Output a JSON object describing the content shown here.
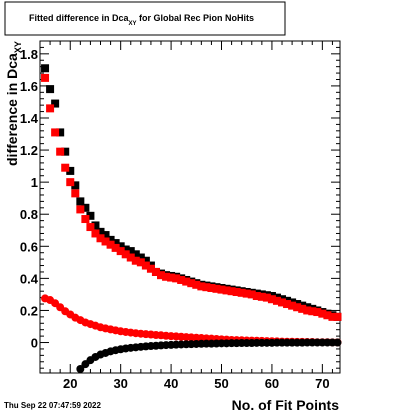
{
  "title": {
    "prefix": "Fitted difference in Dca",
    "subscript": "XY",
    "suffix": " for Global Rec Pion NoHits"
  },
  "timestamp": "Thu Sep 22 07:47:59 2022",
  "colors": {
    "series_black": "#000000",
    "series_red": "#ff0000"
  },
  "chart_data": {
    "type": "scatter",
    "title": "Fitted difference in Dca_XY for Global Rec Pion NoHits",
    "xlabel": "No. of Fit Points",
    "ylabel": "difference in Dca_XY",
    "ylabel_main": "difference in Dca",
    "ylabel_sub": "XY",
    "xlim": [
      14,
      73.5
    ],
    "ylim": [
      -0.19,
      1.88
    ],
    "grid": false,
    "legend": false,
    "x_ticks": [
      20,
      30,
      40,
      50,
      60,
      70
    ],
    "y_ticks": [
      0,
      0.2,
      0.4,
      0.6,
      0.8,
      1,
      1.2,
      1.4,
      1.6,
      1.8
    ],
    "x_tick_labels": [
      "20",
      "30",
      "40",
      "50",
      "60",
      "70"
    ],
    "y_tick_labels": [
      "0",
      "0.2",
      "0.4",
      "0.6",
      "0.8",
      "1",
      "1.2",
      "1.4",
      "1.6",
      "1.8"
    ],
    "series": [
      {
        "marker": "square",
        "color": "#000000",
        "x": [
          15,
          16,
          17,
          18,
          19,
          20,
          21,
          22,
          23,
          24,
          25,
          26,
          27,
          28,
          29,
          30,
          31,
          32,
          33,
          34,
          35,
          36,
          37,
          38,
          39,
          40,
          41,
          42,
          43,
          44,
          45,
          46,
          47,
          48,
          49,
          50,
          51,
          52,
          53,
          54,
          55,
          56,
          57,
          58,
          59,
          60,
          61,
          62,
          63,
          64,
          65,
          66,
          67,
          68,
          69,
          70,
          71,
          72,
          73
        ],
        "y": [
          1.71,
          1.58,
          1.49,
          1.31,
          1.19,
          1.07,
          0.98,
          0.88,
          0.84,
          0.79,
          0.73,
          0.69,
          0.67,
          0.64,
          0.62,
          0.6,
          0.58,
          0.57,
          0.55,
          0.53,
          0.51,
          0.48,
          0.44,
          0.43,
          0.42,
          0.415,
          0.41,
          0.4,
          0.39,
          0.38,
          0.37,
          0.36,
          0.355,
          0.35,
          0.345,
          0.34,
          0.335,
          0.33,
          0.325,
          0.32,
          0.315,
          0.31,
          0.305,
          0.3,
          0.295,
          0.29,
          0.28,
          0.27,
          0.26,
          0.25,
          0.24,
          0.23,
          0.22,
          0.21,
          0.2,
          0.19,
          0.18,
          0.17,
          0.16
        ]
      },
      {
        "marker": "square",
        "color": "#ff0000",
        "x": [
          15,
          16,
          17,
          18,
          19,
          20,
          21,
          22,
          23,
          24,
          25,
          26,
          27,
          28,
          29,
          30,
          31,
          32,
          33,
          34,
          35,
          36,
          37,
          38,
          39,
          40,
          41,
          42,
          43,
          44,
          45,
          46,
          47,
          48,
          49,
          50,
          51,
          52,
          53,
          54,
          55,
          56,
          57,
          58,
          59,
          60,
          61,
          62,
          63,
          64,
          65,
          66,
          67,
          68,
          69,
          70,
          71,
          72,
          73
        ],
        "y": [
          1.65,
          1.46,
          1.31,
          1.19,
          1.09,
          1.0,
          0.93,
          0.83,
          0.77,
          0.72,
          0.68,
          0.65,
          0.63,
          0.61,
          0.59,
          0.57,
          0.55,
          0.53,
          0.51,
          0.5,
          0.48,
          0.46,
          0.44,
          0.42,
          0.41,
          0.405,
          0.4,
          0.39,
          0.38,
          0.37,
          0.36,
          0.35,
          0.345,
          0.34,
          0.335,
          0.33,
          0.325,
          0.32,
          0.315,
          0.31,
          0.305,
          0.3,
          0.29,
          0.285,
          0.28,
          0.27,
          0.26,
          0.25,
          0.24,
          0.23,
          0.22,
          0.21,
          0.2,
          0.195,
          0.19,
          0.18,
          0.17,
          0.16,
          0.16
        ]
      },
      {
        "marker": "circle",
        "color": "#ff0000",
        "x": [
          15,
          16,
          17,
          18,
          19,
          20,
          21,
          22,
          23,
          24,
          25,
          26,
          27,
          28,
          29,
          30,
          31,
          32,
          33,
          34,
          35,
          36,
          37,
          38,
          39,
          40,
          41,
          42,
          43,
          44,
          45,
          46,
          47,
          48,
          49,
          50,
          51,
          52,
          53,
          54,
          55,
          56,
          57,
          58,
          59,
          60,
          61,
          62,
          63,
          64,
          65,
          66,
          67,
          68,
          69,
          70,
          71,
          72,
          73
        ],
        "y": [
          0.275,
          0.265,
          0.245,
          0.22,
          0.195,
          0.175,
          0.155,
          0.14,
          0.125,
          0.115,
          0.105,
          0.095,
          0.088,
          0.082,
          0.076,
          0.07,
          0.066,
          0.062,
          0.058,
          0.055,
          0.052,
          0.05,
          0.047,
          0.045,
          0.042,
          0.04,
          0.038,
          0.036,
          0.034,
          0.032,
          0.03,
          0.028,
          0.026,
          0.024,
          0.022,
          0.02,
          0.018,
          0.016,
          0.015,
          0.014,
          0.013,
          0.012,
          0.011,
          0.01,
          0.009,
          0.008,
          0.007,
          0.006,
          0.005,
          0.005,
          0.004,
          0.004,
          0.003,
          0.003,
          0.002,
          0.002,
          0.002,
          0.001,
          0.001
        ]
      },
      {
        "marker": "circle",
        "color": "#000000",
        "x": [
          22,
          23,
          24,
          25,
          26,
          27,
          28,
          29,
          30,
          31,
          32,
          33,
          34,
          35,
          36,
          37,
          38,
          39,
          40,
          41,
          42,
          43,
          44,
          45,
          46,
          47,
          48,
          49,
          50,
          51,
          52,
          53,
          54,
          55,
          56,
          57,
          58,
          59,
          60,
          61,
          62,
          63,
          64,
          65,
          66,
          67,
          68,
          69,
          70,
          71,
          72,
          73
        ],
        "y": [
          -0.165,
          -0.135,
          -0.11,
          -0.09,
          -0.075,
          -0.065,
          -0.055,
          -0.048,
          -0.042,
          -0.037,
          -0.033,
          -0.03,
          -0.027,
          -0.024,
          -0.022,
          -0.02,
          -0.018,
          -0.016,
          -0.015,
          -0.013,
          -0.012,
          -0.011,
          -0.01,
          -0.009,
          -0.008,
          -0.007,
          -0.007,
          -0.006,
          -0.005,
          -0.005,
          -0.004,
          -0.004,
          -0.003,
          -0.003,
          -0.003,
          -0.002,
          -0.002,
          -0.002,
          -0.002,
          -0.001,
          -0.001,
          -0.001,
          -0.001,
          -0.001,
          -0.001,
          0,
          0,
          0,
          0,
          0,
          0,
          0
        ]
      }
    ]
  }
}
